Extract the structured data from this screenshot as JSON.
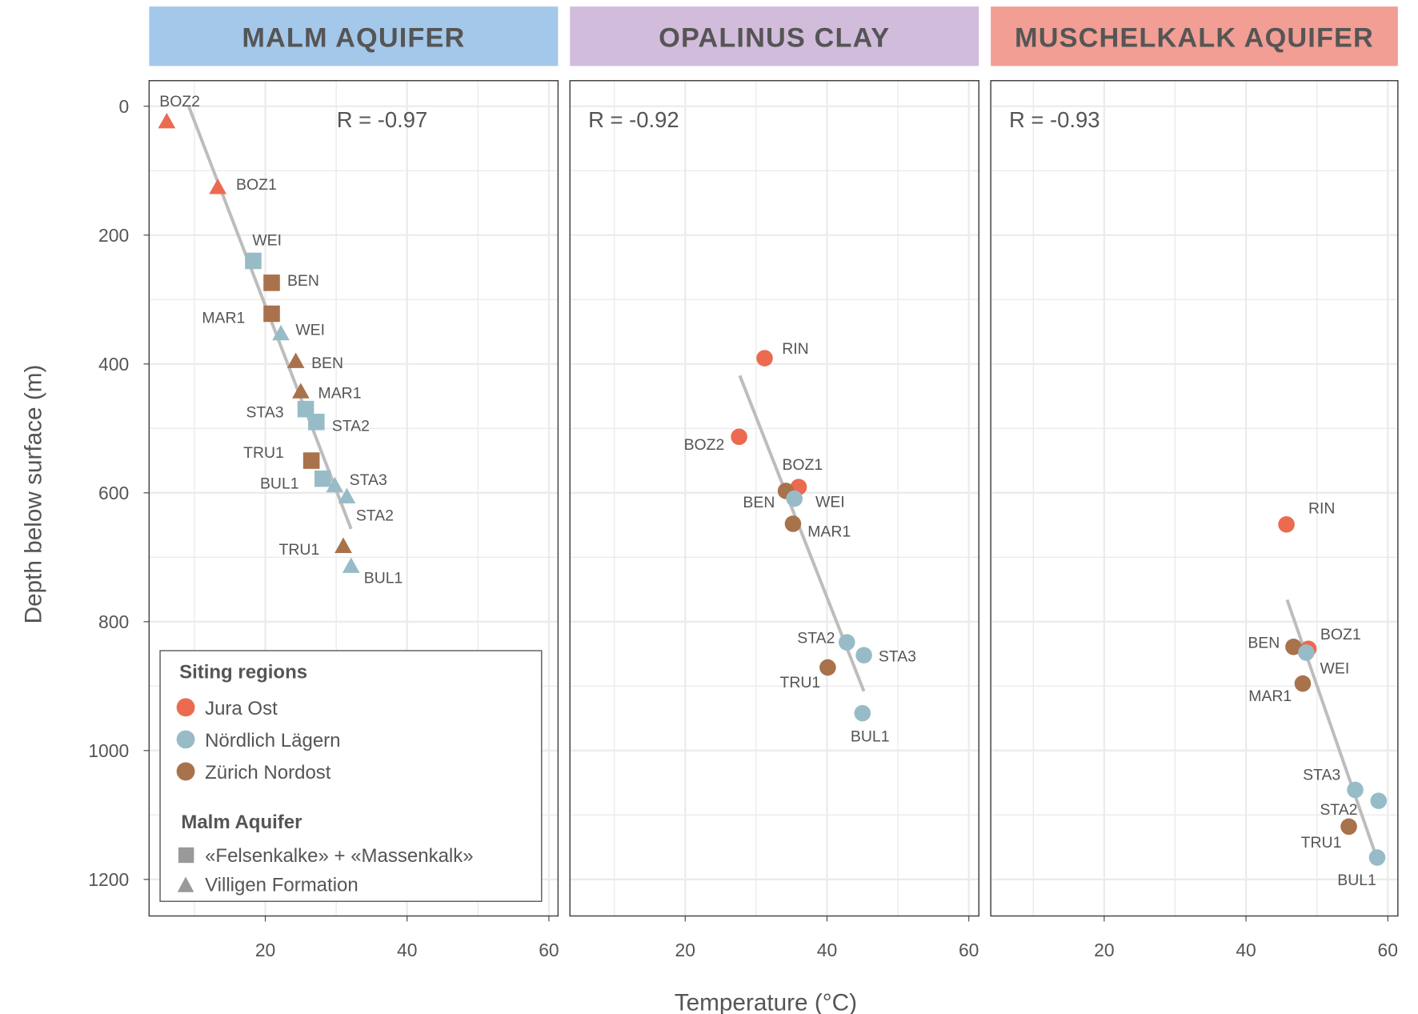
{
  "chart_data": [
    {
      "type": "scatter",
      "title": "MALM AQUIFER",
      "header_color": "#A4C8EA",
      "annotation": "R = -0.97",
      "fit_line": [
        [
          9.2,
          0
        ],
        [
          32.1,
          656
        ]
      ],
      "points": [
        {
          "label": "BOZ2",
          "temp": 6.1,
          "depth": 23,
          "region": "Jura Ost",
          "shape": "triangle"
        },
        {
          "label": "BOZ1",
          "temp": 13.3,
          "depth": 125,
          "region": "Jura Ost",
          "shape": "triangle"
        },
        {
          "label": "WEI",
          "temp": 18.3,
          "depth": 240,
          "region": "Nördlich Lägern",
          "shape": "square"
        },
        {
          "label": "BEN",
          "temp": 20.9,
          "depth": 274,
          "region": "Zürich Nordost",
          "shape": "square"
        },
        {
          "label": "MAR1",
          "temp": 20.9,
          "depth": 322,
          "region": "Zürich Nordost",
          "shape": "square"
        },
        {
          "label": "WEI",
          "temp": 22.2,
          "depth": 352,
          "region": "Nördlich Lägern",
          "shape": "triangle"
        },
        {
          "label": "BEN",
          "temp": 24.3,
          "depth": 395,
          "region": "Zürich Nordost",
          "shape": "triangle"
        },
        {
          "label": "MAR1",
          "temp": 25.0,
          "depth": 442,
          "region": "Zürich Nordost",
          "shape": "triangle"
        },
        {
          "label": "STA3",
          "temp": 25.7,
          "depth": 470,
          "region": "Nördlich Lägern",
          "shape": "square"
        },
        {
          "label": "STA2",
          "temp": 27.2,
          "depth": 490,
          "region": "Nördlich Lägern",
          "shape": "square"
        },
        {
          "label": "TRU1",
          "temp": 26.5,
          "depth": 550,
          "region": "Zürich Nordost",
          "shape": "square"
        },
        {
          "label": "BUL1",
          "temp": 28.1,
          "depth": 578,
          "region": "Nördlich Lägern",
          "shape": "square"
        },
        {
          "label": "STA3",
          "temp": 29.8,
          "depth": 588,
          "region": "Nördlich Lägern",
          "shape": "triangle"
        },
        {
          "label": "STA2",
          "temp": 31.5,
          "depth": 605,
          "region": "Nördlich Lägern",
          "shape": "triangle"
        },
        {
          "label": "TRU1",
          "temp": 31.0,
          "depth": 682,
          "region": "Zürich Nordost",
          "shape": "triangle"
        },
        {
          "label": "BUL1",
          "temp": 32.1,
          "depth": 713,
          "region": "Nördlich Lägern",
          "shape": "triangle"
        }
      ]
    },
    {
      "type": "scatter",
      "title": "OPALINUS CLAY",
      "header_color": "#D2BCDC",
      "annotation": "R = -0.92",
      "fit_line": [
        [
          27.7,
          418
        ],
        [
          45.2,
          908
        ]
      ],
      "points": [
        {
          "label": "RIN",
          "temp": 31.2,
          "depth": 391,
          "region": "Jura Ost",
          "shape": "circle"
        },
        {
          "label": "BOZ2",
          "temp": 27.6,
          "depth": 513,
          "region": "Jura Ost",
          "shape": "circle"
        },
        {
          "label": "BOZ1",
          "temp": 36.0,
          "depth": 591,
          "region": "Jura Ost",
          "shape": "circle"
        },
        {
          "label": "BEN",
          "temp": 34.2,
          "depth": 597,
          "region": "Zürich Nordost",
          "shape": "circle"
        },
        {
          "label": "WEI",
          "temp": 35.4,
          "depth": 609,
          "region": "Nördlich Lägern",
          "shape": "circle"
        },
        {
          "label": "MAR1",
          "temp": 35.2,
          "depth": 648,
          "region": "Zürich Nordost",
          "shape": "circle"
        },
        {
          "label": "STA2",
          "temp": 42.8,
          "depth": 832,
          "region": "Nördlich Lägern",
          "shape": "circle"
        },
        {
          "label": "STA3",
          "temp": 45.2,
          "depth": 852,
          "region": "Nördlich Lägern",
          "shape": "circle"
        },
        {
          "label": "TRU1",
          "temp": 40.1,
          "depth": 871,
          "region": "Zürich Nordost",
          "shape": "circle"
        },
        {
          "label": "BUL1",
          "temp": 45.0,
          "depth": 942,
          "region": "Nördlich Lägern",
          "shape": "circle"
        }
      ]
    },
    {
      "type": "scatter",
      "title": "MUSCHELKALK AQUIFER",
      "header_color": "#F29E94",
      "annotation": "R = -0.93",
      "fit_line": [
        [
          45.8,
          766
        ],
        [
          58.2,
          1159
        ]
      ],
      "points": [
        {
          "label": "RIN",
          "temp": 45.7,
          "depth": 649,
          "region": "Jura Ost",
          "shape": "circle"
        },
        {
          "label": "BOZ1",
          "temp": 48.8,
          "depth": 842,
          "region": "Jura Ost",
          "shape": "circle"
        },
        {
          "label": "BEN",
          "temp": 46.7,
          "depth": 839,
          "region": "Zürich Nordost",
          "shape": "circle"
        },
        {
          "label": "WEI",
          "temp": 48.5,
          "depth": 848,
          "region": "Nördlich Lägern",
          "shape": "circle"
        },
        {
          "label": "MAR1",
          "temp": 48.0,
          "depth": 896,
          "region": "Zürich Nordost",
          "shape": "circle"
        },
        {
          "label": "STA3",
          "temp": 55.4,
          "depth": 1061,
          "region": "Nördlich Lägern",
          "shape": "circle"
        },
        {
          "label": "STA2",
          "temp": 58.7,
          "depth": 1078,
          "region": "Nördlich Lägern",
          "shape": "circle"
        },
        {
          "label": "TRU1",
          "temp": 54.5,
          "depth": 1118,
          "region": "Zürich Nordost",
          "shape": "circle"
        },
        {
          "label": "BUL1",
          "temp": 58.5,
          "depth": 1166,
          "region": "Nördlich Lägern",
          "shape": "circle"
        }
      ]
    }
  ],
  "axes": {
    "xlabel": "Temperature (°C)",
    "ylabel": "Depth below surface (m)",
    "xticks": [
      "20",
      "40",
      "60"
    ],
    "xtick_values": [
      20,
      40,
      60
    ],
    "yticks": [
      "0",
      "200",
      "400",
      "600",
      "800",
      "1000",
      "1200"
    ],
    "ytick_values": [
      0,
      200,
      400,
      600,
      800,
      1000,
      1200
    ],
    "xlim": [
      3.6,
      61.3
    ],
    "ylim": [
      1265,
      -40
    ],
    "y_reversed": true,
    "grid": true
  },
  "legend": {
    "placement": "bottom-left of first panel",
    "regions_title": "Siting regions",
    "regions": [
      {
        "name": "Jura Ost",
        "color": "#EC6A50"
      },
      {
        "name": "Nördlich Lägern",
        "color": "#97BCC7"
      },
      {
        "name": "Zürich Nordost",
        "color": "#A8724B"
      }
    ],
    "shapes_title": "Malm Aquifer",
    "shapes": [
      {
        "name": "«Felsenkalke» + «Massenkalk»",
        "shape": "square"
      },
      {
        "name": "Villigen Formation",
        "shape": "triangle"
      }
    ]
  }
}
